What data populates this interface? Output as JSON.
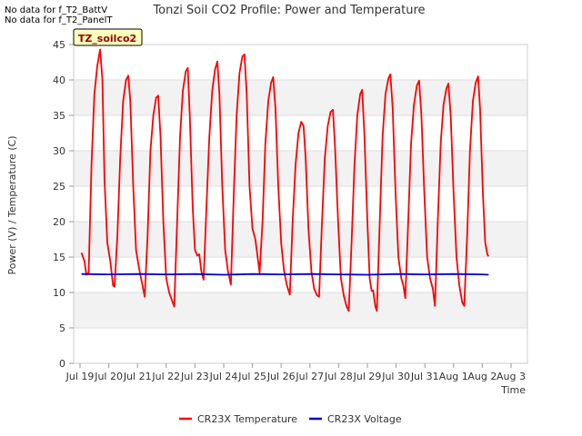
{
  "notes": [
    "No data for f_T2_BattV",
    "No data for f_T2_PanelT"
  ],
  "chart_data": {
    "type": "line",
    "title": "Tonzi Soil CO2 Profile: Power and Temperature",
    "xlabel": "Time",
    "ylabel": "Power (V) / Temperature (C)",
    "tag_label": "TZ_soilco2",
    "ylim": [
      0,
      45
    ],
    "xlim": [
      0,
      16
    ],
    "yticks": [
      0,
      5,
      10,
      15,
      20,
      25,
      30,
      35,
      40,
      45
    ],
    "xticks": [
      {
        "x": 0,
        "label": "Jul 19"
      },
      {
        "x": 1,
        "label": "Jul 20"
      },
      {
        "x": 2,
        "label": "Jul 21"
      },
      {
        "x": 3,
        "label": "Jul 22"
      },
      {
        "x": 4,
        "label": "Jul 23"
      },
      {
        "x": 5,
        "label": "Jul 24"
      },
      {
        "x": 6,
        "label": "Jul 25"
      },
      {
        "x": 7,
        "label": "Jul 26"
      },
      {
        "x": 8,
        "label": "Jul 27"
      },
      {
        "x": 9,
        "label": "Jul 28"
      },
      {
        "x": 10,
        "label": "Jul 29"
      },
      {
        "x": 11,
        "label": "Jul 30"
      },
      {
        "x": 12,
        "label": "Jul 31"
      },
      {
        "x": 13,
        "label": "Aug 1"
      },
      {
        "x": 14,
        "label": "Aug 2"
      },
      {
        "x": 15,
        "label": "Aug 3"
      }
    ],
    "x_units": "days since Jul 19",
    "series": [
      {
        "name": "CR23X Temperature",
        "color": "#ff0000",
        "points": [
          [
            0.05,
            15.6
          ],
          [
            0.15,
            14.5
          ],
          [
            0.22,
            12.5
          ],
          [
            0.3,
            12.8
          ],
          [
            0.4,
            28
          ],
          [
            0.5,
            38
          ],
          [
            0.6,
            42
          ],
          [
            0.7,
            44.3
          ],
          [
            0.78,
            40
          ],
          [
            0.85,
            26
          ],
          [
            0.95,
            17
          ],
          [
            1.05,
            14.5
          ],
          [
            1.15,
            11
          ],
          [
            1.2,
            10.8
          ],
          [
            1.3,
            18
          ],
          [
            1.4,
            29
          ],
          [
            1.5,
            37
          ],
          [
            1.6,
            40
          ],
          [
            1.68,
            40.6
          ],
          [
            1.75,
            37
          ],
          [
            1.85,
            25
          ],
          [
            1.95,
            16
          ],
          [
            2.05,
            13.5
          ],
          [
            2.15,
            11.5
          ],
          [
            2.25,
            9.4
          ],
          [
            2.35,
            18
          ],
          [
            2.45,
            30
          ],
          [
            2.55,
            35
          ],
          [
            2.65,
            37.5
          ],
          [
            2.72,
            37.8
          ],
          [
            2.8,
            32
          ],
          [
            2.9,
            20
          ],
          [
            3.0,
            12
          ],
          [
            3.1,
            10
          ],
          [
            3.2,
            8.9
          ],
          [
            3.28,
            8.0
          ],
          [
            3.38,
            20
          ],
          [
            3.48,
            32
          ],
          [
            3.58,
            38.5
          ],
          [
            3.68,
            41.2
          ],
          [
            3.75,
            41.7
          ],
          [
            3.82,
            35
          ],
          [
            3.92,
            22
          ],
          [
            4.0,
            16
          ],
          [
            4.08,
            15.2
          ],
          [
            4.15,
            15.4
          ],
          [
            4.22,
            13
          ],
          [
            4.3,
            11.8
          ],
          [
            4.4,
            22
          ],
          [
            4.5,
            32
          ],
          [
            4.6,
            38.5
          ],
          [
            4.7,
            41.5
          ],
          [
            4.78,
            42.6
          ],
          [
            4.85,
            38
          ],
          [
            4.95,
            25
          ],
          [
            5.05,
            16
          ],
          [
            5.15,
            13
          ],
          [
            5.25,
            11.1
          ],
          [
            5.35,
            24
          ],
          [
            5.45,
            35
          ],
          [
            5.55,
            41
          ],
          [
            5.65,
            43.3
          ],
          [
            5.72,
            43.6
          ],
          [
            5.8,
            38
          ],
          [
            5.9,
            25
          ],
          [
            6.0,
            19
          ],
          [
            6.1,
            17.5
          ],
          [
            6.18,
            15
          ],
          [
            6.25,
            12.8
          ],
          [
            6.35,
            20
          ],
          [
            6.45,
            31
          ],
          [
            6.55,
            37
          ],
          [
            6.65,
            39.6
          ],
          [
            6.72,
            40.4
          ],
          [
            6.8,
            36
          ],
          [
            6.9,
            25
          ],
          [
            7.0,
            17
          ],
          [
            7.1,
            13
          ],
          [
            7.2,
            11
          ],
          [
            7.3,
            9.7
          ],
          [
            7.4,
            20
          ],
          [
            7.5,
            28
          ],
          [
            7.6,
            32.5
          ],
          [
            7.7,
            34.1
          ],
          [
            7.78,
            33.5
          ],
          [
            7.85,
            29
          ],
          [
            7.95,
            19
          ],
          [
            8.05,
            13
          ],
          [
            8.15,
            10.5
          ],
          [
            8.25,
            9.6
          ],
          [
            8.32,
            9.4
          ],
          [
            8.42,
            20
          ],
          [
            8.52,
            29
          ],
          [
            8.62,
            33.5
          ],
          [
            8.72,
            35.5
          ],
          [
            8.8,
            35.8
          ],
          [
            8.88,
            30
          ],
          [
            8.98,
            20
          ],
          [
            9.08,
            12
          ],
          [
            9.18,
            9.5
          ],
          [
            9.28,
            8
          ],
          [
            9.35,
            7.4
          ],
          [
            9.45,
            17
          ],
          [
            9.55,
            28
          ],
          [
            9.65,
            35
          ],
          [
            9.75,
            38
          ],
          [
            9.82,
            38.6
          ],
          [
            9.9,
            32
          ],
          [
            10.0,
            20
          ],
          [
            10.08,
            12
          ],
          [
            10.15,
            10.2
          ],
          [
            10.2,
            10.3
          ],
          [
            10.28,
            8
          ],
          [
            10.33,
            7.4
          ],
          [
            10.43,
            20
          ],
          [
            10.53,
            32
          ],
          [
            10.63,
            38
          ],
          [
            10.73,
            40.2
          ],
          [
            10.8,
            40.8
          ],
          [
            10.88,
            36
          ],
          [
            10.98,
            24
          ],
          [
            11.08,
            15
          ],
          [
            11.18,
            12
          ],
          [
            11.25,
            11
          ],
          [
            11.32,
            9.2
          ],
          [
            11.42,
            20
          ],
          [
            11.52,
            31
          ],
          [
            11.62,
            36.5
          ],
          [
            11.72,
            39.2
          ],
          [
            11.8,
            39.9
          ],
          [
            11.88,
            35
          ],
          [
            11.98,
            24
          ],
          [
            12.08,
            15
          ],
          [
            12.18,
            12
          ],
          [
            12.28,
            10.5
          ],
          [
            12.35,
            8.1
          ],
          [
            12.45,
            20
          ],
          [
            12.55,
            31
          ],
          [
            12.65,
            36.5
          ],
          [
            12.75,
            38.8
          ],
          [
            12.82,
            39.5
          ],
          [
            12.9,
            35
          ],
          [
            13.0,
            24
          ],
          [
            13.1,
            15
          ],
          [
            13.2,
            11
          ],
          [
            13.3,
            8.6
          ],
          [
            13.37,
            8.1
          ],
          [
            13.47,
            18
          ],
          [
            13.57,
            30
          ],
          [
            13.67,
            37
          ],
          [
            13.77,
            39.6
          ],
          [
            13.85,
            40.5
          ],
          [
            13.92,
            36
          ],
          [
            14.02,
            24
          ],
          [
            14.1,
            17
          ],
          [
            14.18,
            15.3
          ],
          [
            14.22,
            15.1
          ]
        ]
      },
      {
        "name": "CR23X Voltage",
        "color": "#0000cc",
        "points": [
          [
            0.05,
            12.6
          ],
          [
            1.0,
            12.55
          ],
          [
            2.0,
            12.6
          ],
          [
            3.0,
            12.55
          ],
          [
            4.0,
            12.6
          ],
          [
            5.0,
            12.5
          ],
          [
            6.0,
            12.6
          ],
          [
            7.0,
            12.55
          ],
          [
            8.0,
            12.6
          ],
          [
            9.0,
            12.55
          ],
          [
            10.0,
            12.5
          ],
          [
            11.0,
            12.6
          ],
          [
            12.0,
            12.55
          ],
          [
            13.0,
            12.6
          ],
          [
            14.0,
            12.55
          ],
          [
            14.22,
            12.5
          ]
        ]
      }
    ]
  }
}
